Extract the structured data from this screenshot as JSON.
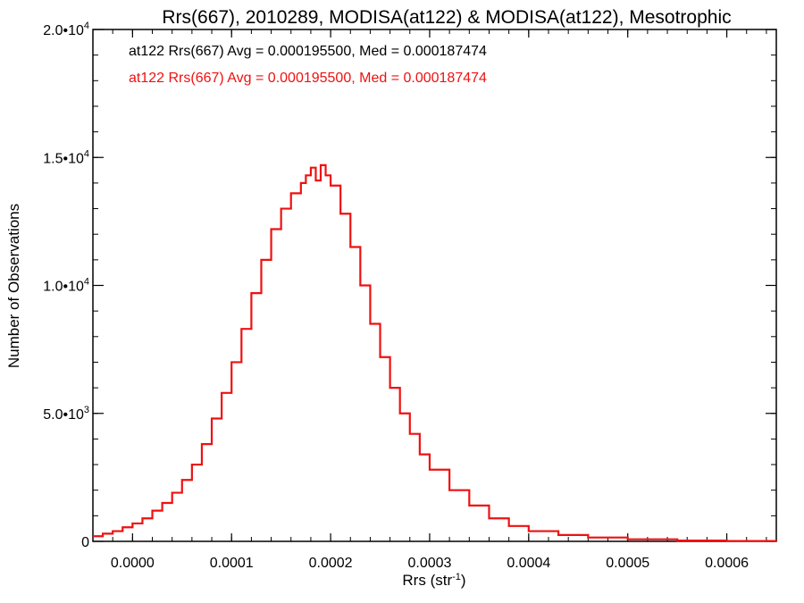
{
  "chart_data": {
    "type": "line",
    "title": "Rrs(667), 2010289, MODISA(at122) & MODISA(at122), Mesotrophic",
    "xlabel": "Rrs (str",
    "xlabel_sup": "-1",
    "xlabel_close": ")",
    "ylabel": "Number of Observations",
    "xlim": [
      -4e-05,
      0.00065
    ],
    "ylim": [
      0,
      20000
    ],
    "grid": false,
    "legend_position": "top-left",
    "x_ticks": [
      {
        "value": 0.0,
        "label": "0.0000"
      },
      {
        "value": 0.0001,
        "label": "0.0001"
      },
      {
        "value": 0.0002,
        "label": "0.0002"
      },
      {
        "value": 0.0003,
        "label": "0.0003"
      },
      {
        "value": 0.0004,
        "label": "0.0004"
      },
      {
        "value": 0.0005,
        "label": "0.0005"
      },
      {
        "value": 0.0006,
        "label": "0.0006"
      }
    ],
    "y_ticks": [
      {
        "value": 0,
        "label": "0",
        "sup": ""
      },
      {
        "value": 5000,
        "label": "5.0•10",
        "sup": "3"
      },
      {
        "value": 10000,
        "label": "1.0•10",
        "sup": "4"
      },
      {
        "value": 15000,
        "label": "1.5•10",
        "sup": "4"
      },
      {
        "value": 20000,
        "label": "2.0•10",
        "sup": "4"
      }
    ],
    "annotations": [
      {
        "text": "at122 Rrs(667) Avg = 0.000195500, Med = 0.000187474",
        "color": "#000000"
      },
      {
        "text": "at122 Rrs(667) Avg = 0.000195500, Med = 0.000187474",
        "color": "#ee1111"
      }
    ],
    "series": [
      {
        "color": "#ee1111",
        "x": [
          -4e-05,
          -3e-05,
          -2e-05,
          -1e-05,
          0.0,
          1e-05,
          2e-05,
          3e-05,
          4e-05,
          5e-05,
          6e-05,
          7e-05,
          8e-05,
          9e-05,
          0.0001,
          0.00011,
          0.00012,
          0.00013,
          0.00014,
          0.00015,
          0.00016,
          0.00017,
          0.000175,
          0.00018,
          0.000185,
          0.00019,
          0.000195,
          0.0002,
          0.00021,
          0.00022,
          0.00023,
          0.00024,
          0.00025,
          0.00026,
          0.00027,
          0.00028,
          0.00029,
          0.0003,
          0.00032,
          0.00034,
          0.00036,
          0.00038,
          0.0004,
          0.00043,
          0.00046,
          0.0005,
          0.00055,
          0.0006,
          0.00065
        ],
        "y": [
          200,
          300,
          400,
          550,
          700,
          900,
          1200,
          1500,
          1900,
          2400,
          3000,
          3800,
          4800,
          5800,
          7000,
          8300,
          9700,
          11000,
          12200,
          13000,
          13600,
          14000,
          14300,
          14600,
          14100,
          14700,
          14300,
          13900,
          12800,
          11500,
          10000,
          8500,
          7200,
          6000,
          5000,
          4200,
          3400,
          2800,
          2000,
          1400,
          900,
          600,
          400,
          250,
          150,
          80,
          30,
          15,
          5
        ]
      }
    ]
  }
}
